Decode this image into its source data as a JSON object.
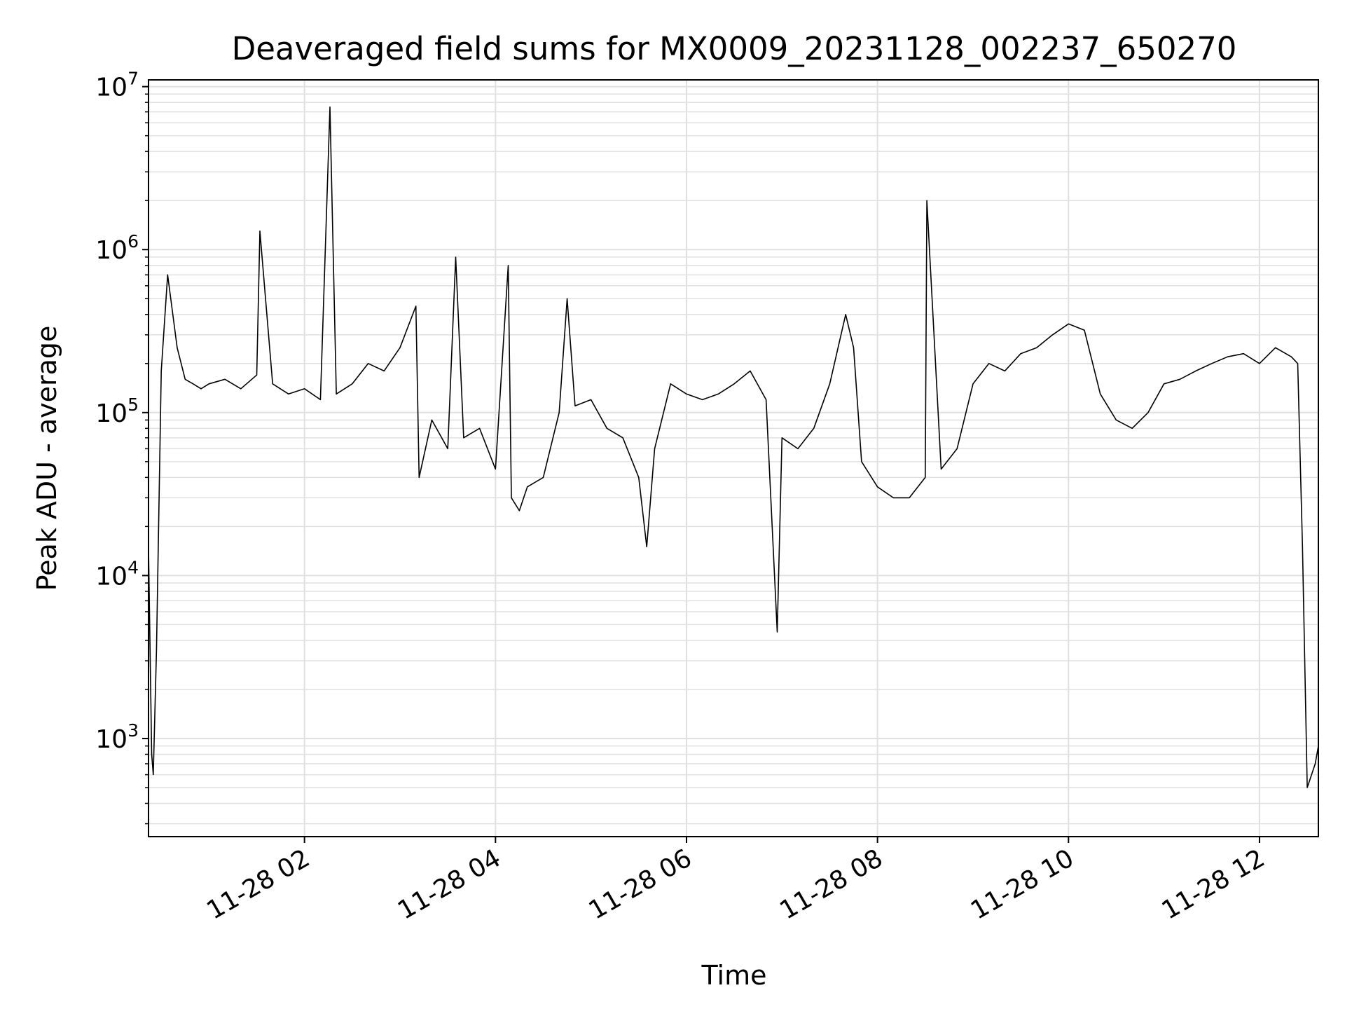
{
  "chart_data": {
    "type": "line",
    "title": "Deaveraged field sums for MX0009_20231128_002237_650270",
    "xlabel": "Time",
    "ylabel": "Peak ADU - average",
    "xscale": "time",
    "yscale": "log",
    "xlim": [
      "2023-11-28 00:22",
      "2023-11-28 12:37"
    ],
    "ylim": [
      250,
      11000000
    ],
    "grid": true,
    "line_color": "#000000",
    "grid_color": "#e0e0e0",
    "x_ticks": [
      {
        "value": "2023-11-28 02:00",
        "label": "11-28 02"
      },
      {
        "value": "2023-11-28 04:00",
        "label": "11-28 04"
      },
      {
        "value": "2023-11-28 06:00",
        "label": "11-28 06"
      },
      {
        "value": "2023-11-28 08:00",
        "label": "11-28 08"
      },
      {
        "value": "2023-11-28 10:00",
        "label": "11-28 10"
      },
      {
        "value": "2023-11-28 12:00",
        "label": "11-28 12"
      }
    ],
    "y_ticks": [
      {
        "value": 1000,
        "base": "10",
        "exp": "3"
      },
      {
        "value": 10000,
        "base": "10",
        "exp": "4"
      },
      {
        "value": 100000,
        "base": "10",
        "exp": "5"
      },
      {
        "value": 1000000,
        "base": "10",
        "exp": "6"
      },
      {
        "value": 10000000,
        "base": "10",
        "exp": "7"
      }
    ],
    "series": [
      {
        "x": [
          "00:22",
          "00:24",
          "00:25",
          "00:27",
          "00:30",
          "00:34",
          "00:40",
          "00:45",
          "00:50",
          "00:55",
          "01:00",
          "01:10",
          "01:20",
          "01:30",
          "01:32",
          "01:40",
          "01:50",
          "02:00",
          "02:10",
          "02:16",
          "02:20",
          "02:30",
          "02:40",
          "02:50",
          "03:00",
          "03:10",
          "03:12",
          "03:20",
          "03:30",
          "03:35",
          "03:40",
          "03:50",
          "04:00",
          "04:08",
          "04:10",
          "04:15",
          "04:20",
          "04:30",
          "04:40",
          "04:45",
          "04:50",
          "05:00",
          "05:10",
          "05:20",
          "05:30",
          "05:35",
          "05:40",
          "05:50",
          "06:00",
          "06:10",
          "06:20",
          "06:30",
          "06:40",
          "06:50",
          "06:57",
          "07:00",
          "07:10",
          "07:20",
          "07:30",
          "07:40",
          "07:45",
          "07:50",
          "08:00",
          "08:10",
          "08:20",
          "08:30",
          "08:31",
          "08:40",
          "08:50",
          "09:00",
          "09:10",
          "09:20",
          "09:30",
          "09:40",
          "09:50",
          "10:00",
          "10:10",
          "10:20",
          "10:30",
          "10:40",
          "10:50",
          "11:00",
          "11:10",
          "11:20",
          "11:30",
          "11:40",
          "11:50",
          "12:00",
          "12:10",
          "12:20",
          "12:24",
          "12:27",
          "12:30",
          "12:35",
          "12:37"
        ],
        "y": [
          15000,
          800,
          600,
          3500,
          180000,
          700000,
          250000,
          160000,
          150000,
          140000,
          150000,
          160000,
          140000,
          170000,
          1300000,
          150000,
          130000,
          140000,
          120000,
          7500000,
          130000,
          150000,
          200000,
          180000,
          250000,
          450000,
          40000,
          90000,
          60000,
          900000,
          70000,
          80000,
          45000,
          800000,
          30000,
          25000,
          35000,
          40000,
          100000,
          500000,
          110000,
          120000,
          80000,
          70000,
          40000,
          15000,
          60000,
          150000,
          130000,
          120000,
          130000,
          150000,
          180000,
          120000,
          4500,
          70000,
          60000,
          80000,
          150000,
          400000,
          250000,
          50000,
          35000,
          30000,
          30000,
          40000,
          2000000,
          45000,
          60000,
          150000,
          200000,
          180000,
          230000,
          250000,
          300000,
          350000,
          320000,
          130000,
          90000,
          80000,
          100000,
          150000,
          160000,
          180000,
          200000,
          220000,
          230000,
          200000,
          250000,
          220000,
          200000,
          15000,
          500,
          700,
          900
        ]
      }
    ]
  }
}
